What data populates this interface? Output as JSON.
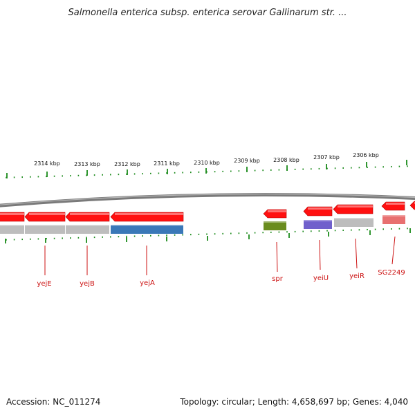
{
  "title": "Salmonella enterica subsp. enterica serovar Gallinarum str. ...",
  "footer": {
    "accession": "Accession: NC_011274",
    "summary": "Topology: circular; Length: 4,658,697 bp; Genes: 4,040"
  },
  "ticks": [
    {
      "label": "2314 kbp"
    },
    {
      "label": "2313 kbp"
    },
    {
      "label": "2312 kbp"
    },
    {
      "label": "2311 kbp"
    },
    {
      "label": "2310 kbp"
    },
    {
      "label": "2309 kbp"
    },
    {
      "label": "2308 kbp"
    },
    {
      "label": "2307 kbp"
    },
    {
      "label": "2306 kbp"
    }
  ],
  "genes": [
    {
      "label": "yejE"
    },
    {
      "label": "yejB"
    },
    {
      "label": "yejA"
    },
    {
      "label": "spr"
    },
    {
      "label": "yeiU"
    },
    {
      "label": "yeiR"
    },
    {
      "label": "SG2249"
    }
  ],
  "colors": {
    "cds": "#ff1010",
    "feature_grey": "#bdbdbd",
    "feature_blue": "#3a78b8",
    "feature_green": "#6a8c1e",
    "feature_purple": "#7060cc",
    "feature_pink": "#e87070",
    "tick_green": "#1a8a1a",
    "backbone": "#7a7a7a",
    "label_red": "#cc1111"
  }
}
